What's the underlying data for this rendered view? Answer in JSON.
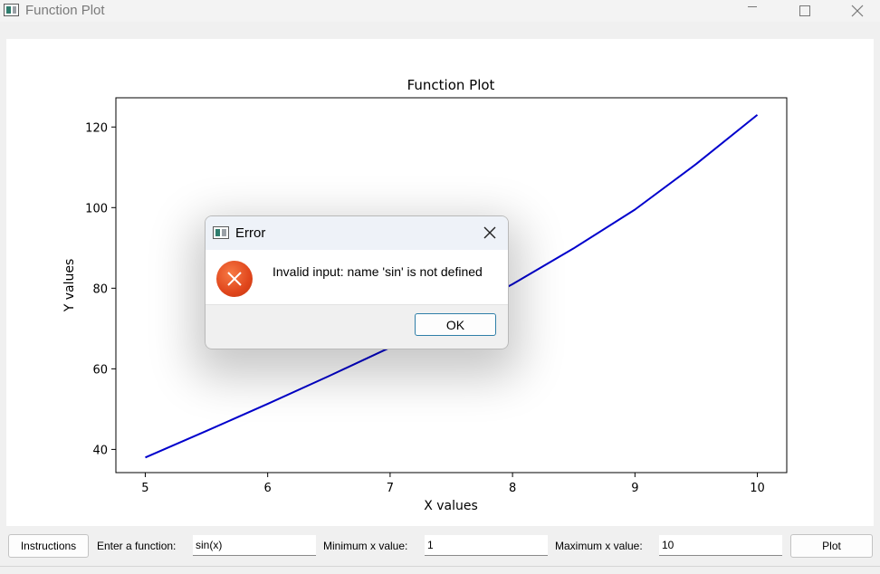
{
  "window": {
    "title": "Function Plot",
    "controls": [
      "minimize",
      "maximize",
      "close"
    ]
  },
  "chart_data": {
    "type": "line",
    "title": "Function Plot",
    "xlabel": "X values",
    "ylabel": "Y values",
    "xlim": [
      4.76,
      10.24
    ],
    "ylim": [
      34.25,
      127.25
    ],
    "xticks": [
      5,
      6,
      7,
      8,
      9,
      10
    ],
    "yticks": [
      40,
      60,
      80,
      100,
      120
    ],
    "grid": false,
    "series": [
      {
        "color": "#0000cc",
        "x": [
          5,
          5.5,
          6,
          6.5,
          7,
          7.5,
          8,
          8.5,
          9,
          9.5,
          10
        ],
        "y": [
          38,
          44.6,
          51.3,
          58.2,
          65.3,
          72.9,
          81,
          89.9,
          99.5,
          110.8,
          123
        ]
      }
    ]
  },
  "dialog": {
    "title": "Error",
    "message": "Invalid input: name 'sin' is not defined",
    "ok_label": "OK",
    "icon": "error-icon"
  },
  "controls": {
    "instructions_label": "Instructions",
    "function_label": "Enter a function:",
    "function_value": "sin(x)",
    "min_label": "Minimum x value:",
    "min_value": "1",
    "max_label": "Maximum x value:",
    "max_value": "10",
    "plot_label": "Plot"
  }
}
